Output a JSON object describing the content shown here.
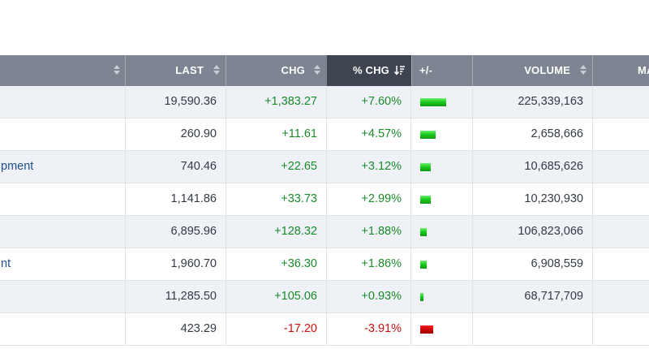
{
  "header": {
    "name_label": "",
    "last_label": "LAST",
    "chg_label": "CHG",
    "pct_chg_label": "% CHG",
    "bar_label": "+/-",
    "volume_label": "VOLUME",
    "extra_label": "MA"
  },
  "colors": {
    "positive": "#1b8a2a",
    "negative": "#cc1010",
    "header_bg": "#7c8591",
    "active_header_bg": "#3e4550"
  },
  "icons": {
    "sort": "sort-updown-icon",
    "sort_active": "sort-descending-icon"
  },
  "rows": [
    {
      "name": "",
      "last": "19,590.36",
      "chg": "+1,383.27",
      "pct": "+7.60%",
      "pct_value": 7.6,
      "volume": "225,339,163",
      "direction": "up"
    },
    {
      "name": "",
      "last": "260.90",
      "chg": "+11.61",
      "pct": "+4.57%",
      "pct_value": 4.57,
      "volume": "2,658,666",
      "direction": "up"
    },
    {
      "name": "pment",
      "last": "740.46",
      "chg": "+22.65",
      "pct": "+3.12%",
      "pct_value": 3.12,
      "volume": "10,685,626",
      "direction": "up"
    },
    {
      "name": "",
      "last": "1,141.86",
      "chg": "+33.73",
      "pct": "+2.99%",
      "pct_value": 2.99,
      "volume": "10,230,930",
      "direction": "up"
    },
    {
      "name": "",
      "last": "6,895.96",
      "chg": "+128.32",
      "pct": "+1.88%",
      "pct_value": 1.88,
      "volume": "106,823,066",
      "direction": "up"
    },
    {
      "name": "nt",
      "last": "1,960.70",
      "chg": "+36.30",
      "pct": "+1.86%",
      "pct_value": 1.86,
      "volume": "6,908,559",
      "direction": "up"
    },
    {
      "name": "",
      "last": "11,285.50",
      "chg": "+105.06",
      "pct": "+0.93%",
      "pct_value": 0.93,
      "volume": "68,717,709",
      "direction": "up"
    },
    {
      "name": "",
      "last": "423.29",
      "chg": "-17.20",
      "pct": "-3.91%",
      "pct_value": -3.91,
      "volume": "",
      "direction": "down"
    }
  ]
}
